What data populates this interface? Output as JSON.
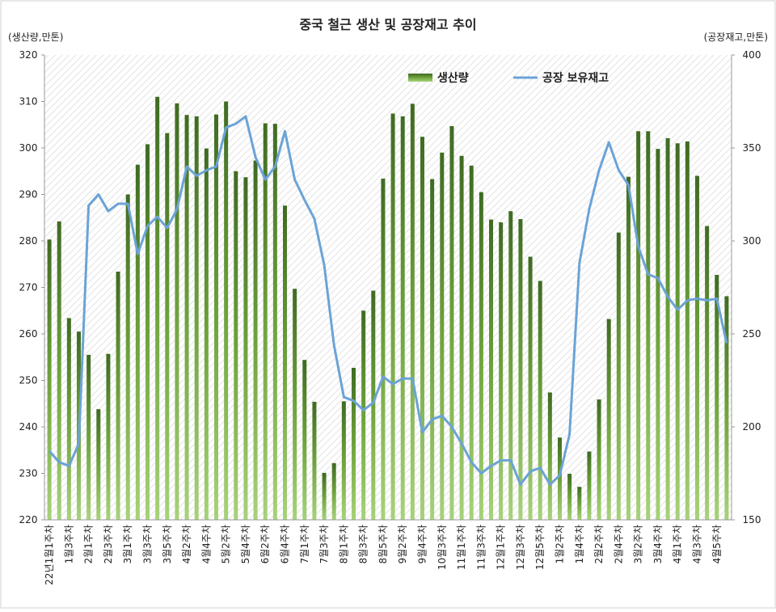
{
  "chart_data": {
    "type": "bar_line",
    "title": "중국 철근 생산 및 공장재고 추이",
    "y_label": "(생산량,만톤)",
    "y2_label": "(공장재고,만톤)",
    "categories": [
      "22년1월1주차",
      null,
      "1월3주차",
      null,
      "2월1주차",
      null,
      "2월3주차",
      null,
      "3월1주차",
      null,
      "3월3주차",
      null,
      "3월5주차",
      null,
      "4월2주차",
      null,
      "4월4주차",
      null,
      "5월2주차",
      null,
      "5월4주차",
      null,
      "6월2주차",
      null,
      "6월4주차",
      null,
      "7월1주차",
      null,
      "7월3주차",
      null,
      "8월1주차",
      null,
      "8월3주차",
      null,
      "8월5주차",
      null,
      "9월2주차",
      null,
      "9월4주차",
      null,
      "10월3주차",
      null,
      "11월1주차",
      null,
      "11월3주차",
      null,
      "12월1주차",
      null,
      "12월3주차",
      null,
      "12월5주차",
      null,
      "1월2주차",
      null,
      "1월4주차",
      null,
      "2월2주차",
      null,
      "2월4주차",
      null,
      "3월2주차",
      null,
      "3월4주차",
      null,
      "4월1주차",
      null,
      "4월3주차",
      null,
      "4월5주차",
      null
    ],
    "series": [
      {
        "name": "생산량",
        "color": "#4f7f2a",
        "axis": "y",
        "kind": "bar",
        "values": [
          280.3,
          284.2,
          263.4,
          260.5,
          255.5,
          243.8,
          255.7,
          273.4,
          290,
          296.4,
          300.8,
          311,
          303.2,
          309.6,
          307.1,
          306.8,
          299.9,
          307.2,
          310,
          295,
          293.7,
          297.3,
          305.3,
          305.2,
          287.6,
          269.7,
          254.4,
          245.4,
          230.1,
          232.2,
          245.5,
          252.7,
          265,
          269.3,
          293.4,
          307.4,
          306.8,
          309.5,
          302.4,
          293.3,
          299,
          304.7,
          298.3,
          296.2,
          290.5,
          284.6,
          284,
          286.4,
          284.7,
          276.6,
          271.4,
          247.4,
          237.7,
          229.9,
          227.1,
          234.7,
          245.9,
          263.2,
          281.8,
          293.8,
          303.6,
          303.6,
          299.8,
          302.1,
          301,
          301.4,
          294,
          283.2,
          272.7,
          268.1
        ]
      },
      {
        "name": "공장 보유재고",
        "color": "#6ba3d6",
        "axis": "y2",
        "kind": "line",
        "values": [
          187,
          181,
          179,
          191,
          319,
          325,
          316,
          320,
          320,
          293,
          308,
          313,
          307,
          317,
          340,
          335,
          338,
          340,
          361,
          363,
          367,
          345,
          333,
          340,
          359,
          333,
          322,
          312,
          287,
          244,
          216,
          214,
          209,
          213,
          227,
          223,
          226,
          226,
          197,
          204,
          206,
          200,
          191,
          181,
          175,
          179,
          182,
          182,
          169,
          176,
          178,
          169,
          174,
          196,
          288,
          317,
          338,
          353,
          338,
          330,
          297,
          282,
          280,
          270,
          263,
          268,
          269,
          268,
          269,
          245
        ]
      }
    ],
    "ylim": [
      220,
      320
    ],
    "yticks": [
      220,
      230,
      240,
      250,
      260,
      270,
      280,
      290,
      300,
      310,
      320
    ],
    "y2lim": [
      150,
      400
    ],
    "y2ticks": [
      150,
      200,
      250,
      300,
      350,
      400
    ],
    "legend": "top-right"
  }
}
